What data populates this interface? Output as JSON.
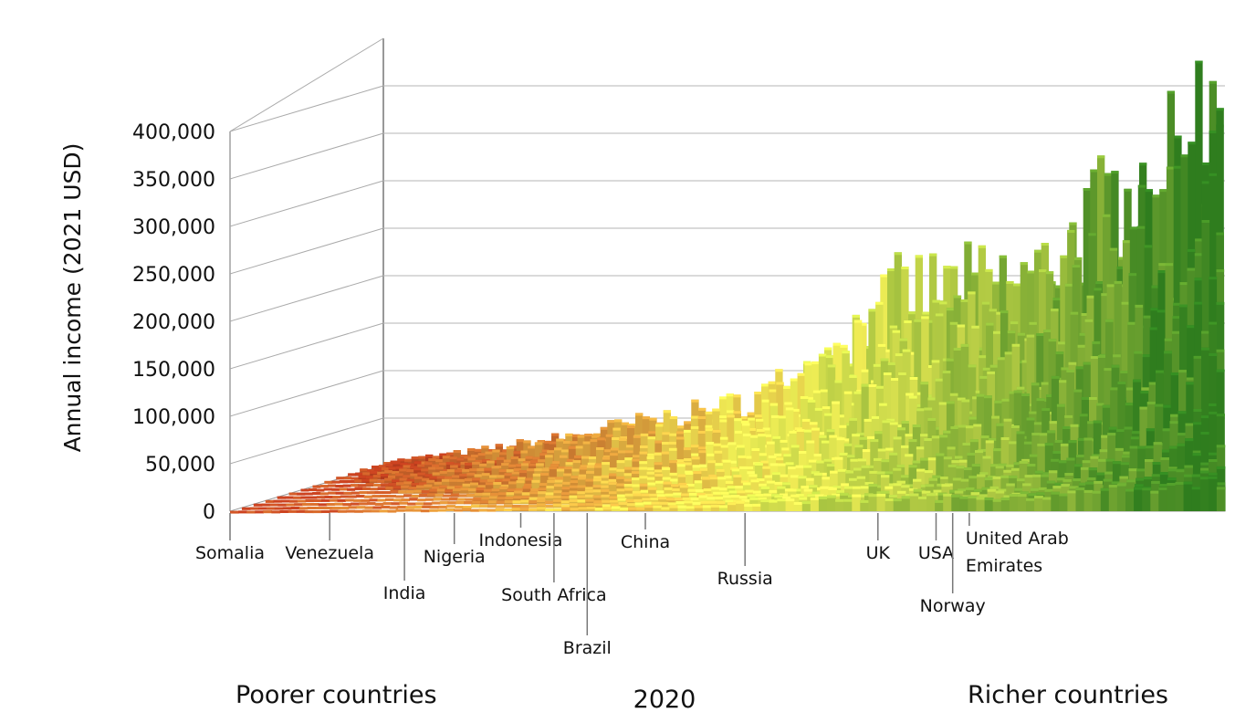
{
  "chart_data": {
    "type": "bar",
    "subtype": "3d-income-distribution",
    "title": "2020",
    "ylabel": "Annual income (2021 USD)",
    "ylim": [
      0,
      400000
    ],
    "yticks": [
      {
        "value": 0,
        "label": "0"
      },
      {
        "value": 50000,
        "label": "50,000"
      },
      {
        "value": 100000,
        "label": "100,000"
      },
      {
        "value": 150000,
        "label": "150,000"
      },
      {
        "value": 200000,
        "label": "200,000"
      },
      {
        "value": 250000,
        "label": "250,000"
      },
      {
        "value": 300000,
        "label": "300,000"
      },
      {
        "value": 350000,
        "label": "350,000"
      },
      {
        "value": 400000,
        "label": "400,000"
      }
    ],
    "grid": true,
    "x_ends": {
      "left": "Poorer countries",
      "right": "Richer countries"
    },
    "countries": [
      {
        "name": "Somalia",
        "pos": 0.0
      },
      {
        "name": "Venezuela",
        "pos": 0.12
      },
      {
        "name": "India",
        "pos": 0.21
      },
      {
        "name": "Nigeria",
        "pos": 0.27
      },
      {
        "name": "Indonesia",
        "pos": 0.35
      },
      {
        "name": "South Africa",
        "pos": 0.39
      },
      {
        "name": "Brazil",
        "pos": 0.43
      },
      {
        "name": "China",
        "pos": 0.5
      },
      {
        "name": "Russia",
        "pos": 0.62
      },
      {
        "name": "UK",
        "pos": 0.78
      },
      {
        "name": "USA",
        "pos": 0.85
      },
      {
        "name": "Norway",
        "pos": 0.87
      },
      {
        "name": "United Arab Emirates",
        "pos": 0.89
      }
    ],
    "top_incomes_by_position": {
      "x": [
        0.0,
        0.1,
        0.2,
        0.27,
        0.33,
        0.4,
        0.45,
        0.5,
        0.55,
        0.62,
        0.7,
        0.78,
        0.85,
        0.9,
        0.95,
        1.0
      ],
      "y": [
        5000,
        15000,
        28000,
        40000,
        50000,
        60000,
        75000,
        100000,
        135000,
        185000,
        190000,
        200000,
        260000,
        300000,
        320000,
        420000
      ]
    },
    "colors": {
      "poor": "#b23a1c",
      "middle": "#f0ee55",
      "rich": "#2f7d1e"
    }
  }
}
